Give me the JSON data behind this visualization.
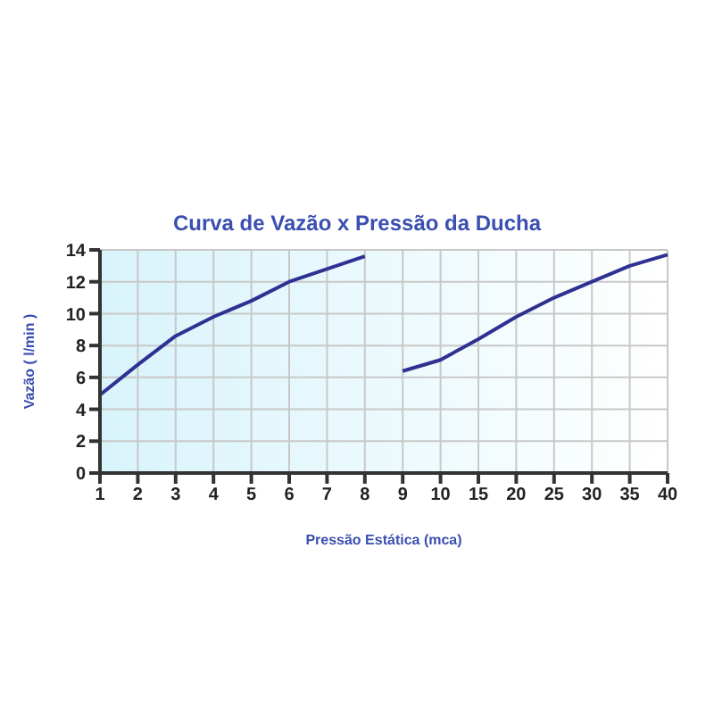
{
  "chart_data": {
    "type": "line",
    "title": "Curva de Vazão x Pressão da Ducha",
    "xlabel": "Pressão Estática (mca)",
    "ylabel": "Vazão ( l/min )",
    "categories": [
      "1",
      "2",
      "3",
      "4",
      "5",
      "6",
      "7",
      "8",
      "9",
      "10",
      "15",
      "20",
      "25",
      "30",
      "35",
      "40"
    ],
    "series": [
      {
        "color": "#2e3192",
        "values": [
          4.9,
          6.8,
          8.6,
          9.8,
          10.8,
          12.0,
          12.8,
          13.6,
          null,
          null,
          null,
          null,
          null,
          null,
          null,
          null
        ]
      },
      {
        "color": "#2e3192",
        "values": [
          null,
          null,
          null,
          null,
          null,
          null,
          null,
          null,
          6.4,
          7.1,
          8.4,
          9.8,
          11.0,
          12.0,
          13.0,
          13.7
        ]
      }
    ],
    "ylim": [
      0,
      14
    ],
    "yticks": [
      0,
      2,
      4,
      6,
      8,
      10,
      12,
      14
    ],
    "grid": true,
    "marker": "none",
    "line_style": "solid"
  }
}
